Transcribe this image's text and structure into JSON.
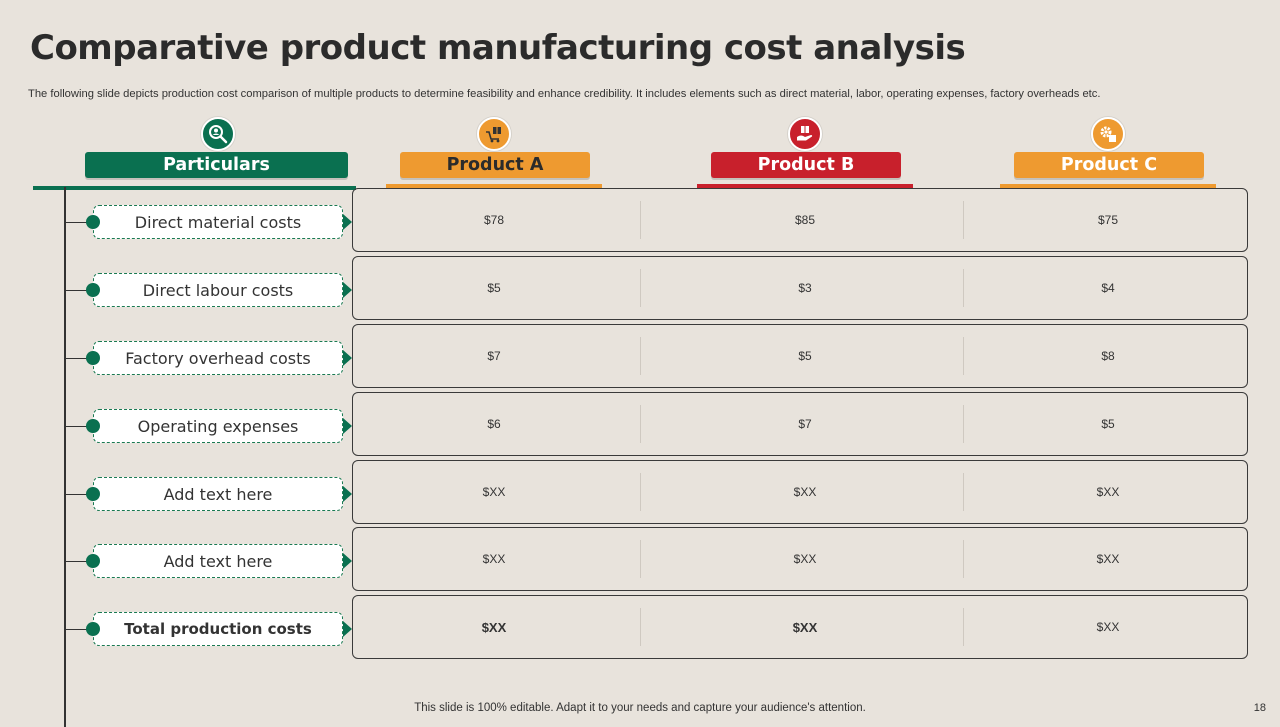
{
  "title": "Comparative product manufacturing cost analysis",
  "subtitle": "The following slide depicts production cost comparison of multiple products to determine feasibility and enhance credibility. It includes elements such as direct material, labor, operating expenses, factory overheads etc.",
  "colors": {
    "green": "#0a7050",
    "orange": "#ee9a30",
    "red": "#c8202c"
  },
  "headers": [
    {
      "label": "Particulars",
      "icon": "search-person-icon",
      "color": "#0a7050"
    },
    {
      "label": "Product A",
      "icon": "box-cart-icon",
      "color": "#ee9a30"
    },
    {
      "label": "Product B",
      "icon": "hand-box-icon",
      "color": "#c8202c"
    },
    {
      "label": "Product C",
      "icon": "gear-box-icon",
      "color": "#ee9a30"
    }
  ],
  "rows": [
    {
      "label": "Direct material costs",
      "a": "$78",
      "b": "$85",
      "c": "$75"
    },
    {
      "label": "Direct labour costs",
      "a": "$5",
      "b": "$3",
      "c": "$4"
    },
    {
      "label": "Factory overhead costs",
      "a": "$7",
      "b": "$5",
      "c": "$8"
    },
    {
      "label": "Operating expenses",
      "a": "$6",
      "b": "$7",
      "c": "$5"
    },
    {
      "label": "Add text here",
      "a": "$XX",
      "b": "$XX",
      "c": "$XX"
    },
    {
      "label": "Add text here",
      "a": "$XX",
      "b": "$XX",
      "c": "$XX"
    },
    {
      "label": "Total production costs",
      "a": "$XX",
      "b": "$XX",
      "c": "$XX"
    }
  ],
  "footer": "This slide is 100% editable. Adapt it to your needs and capture your audience's attention.",
  "page_number": "18"
}
